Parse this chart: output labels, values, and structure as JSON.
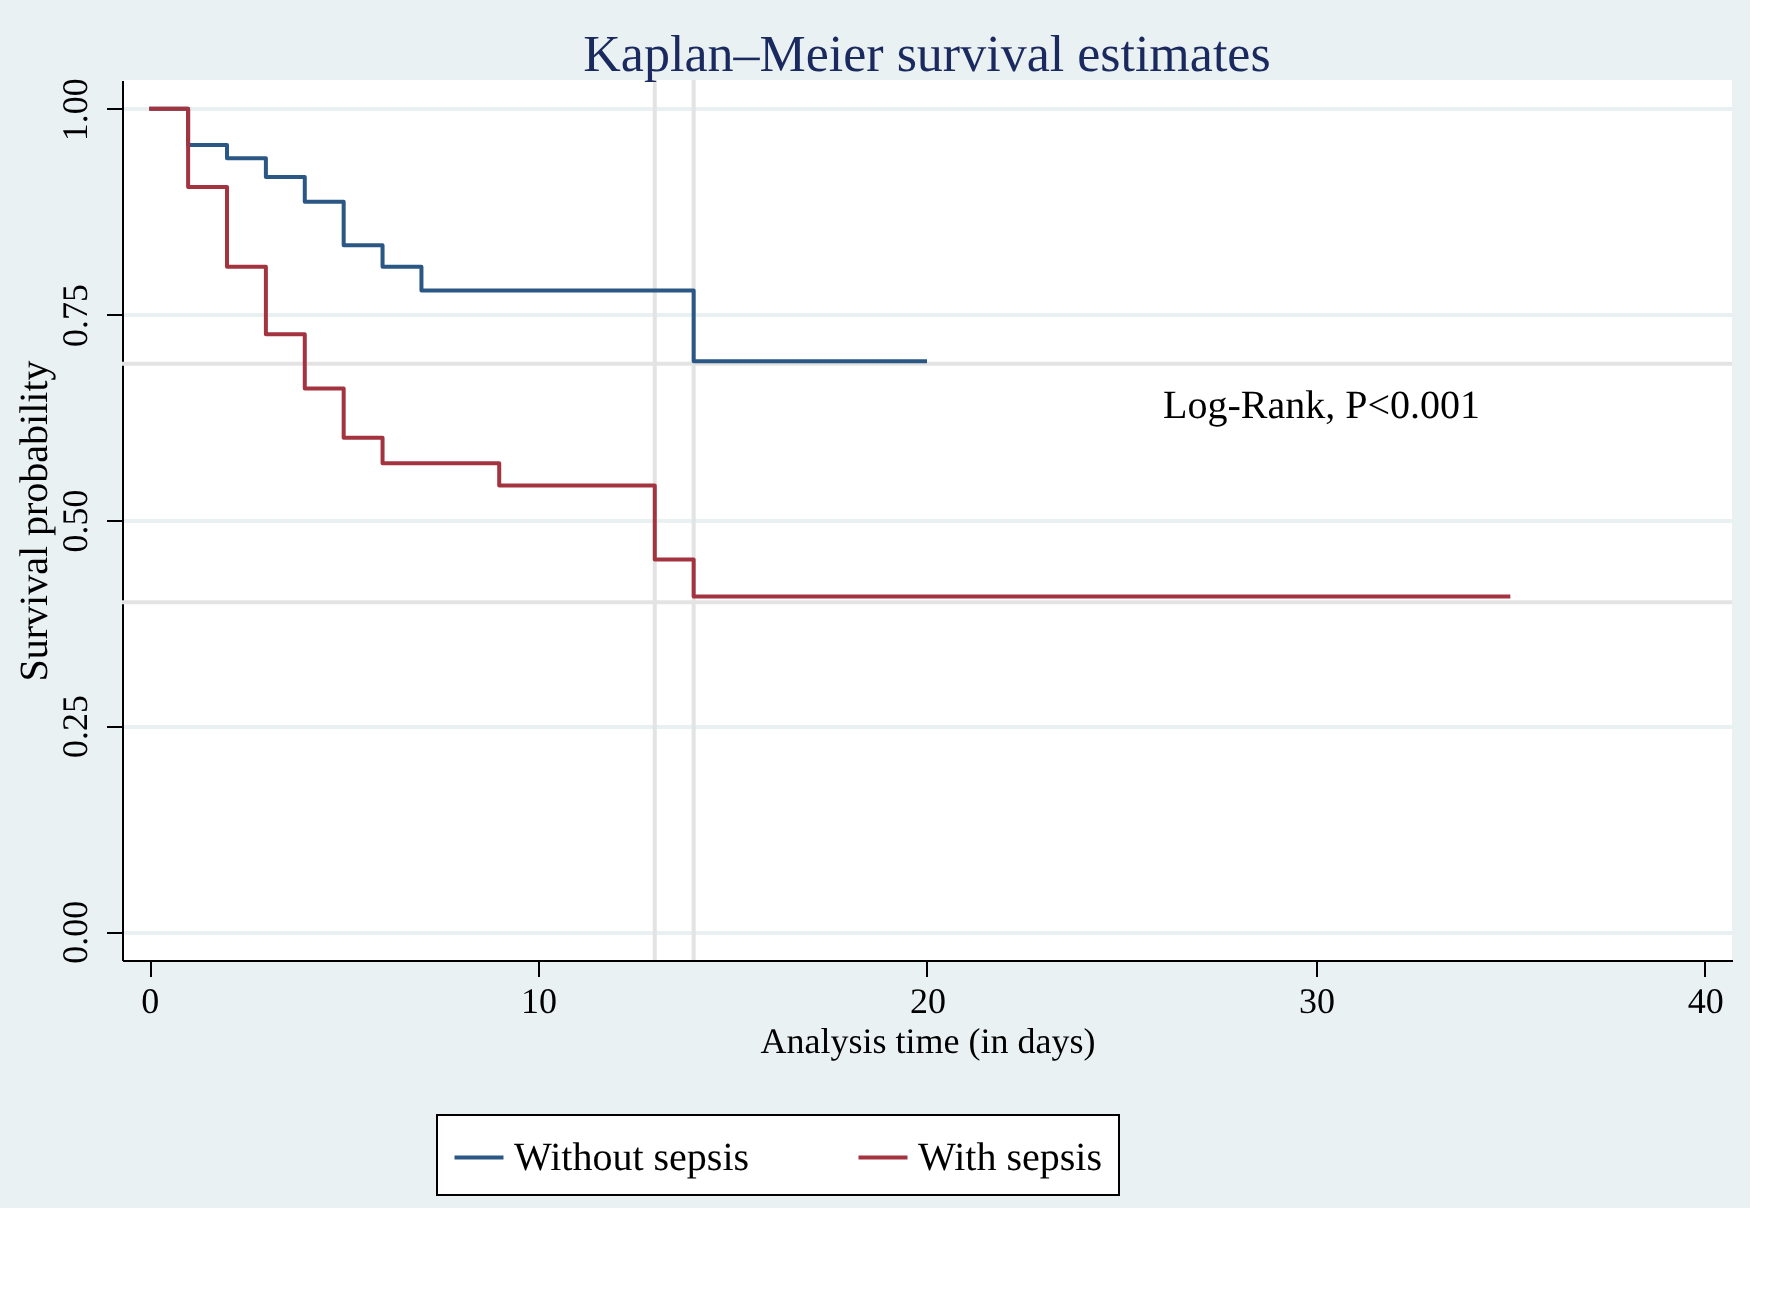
{
  "chart_data": {
    "type": "step",
    "title": "Kaplan–Meier survival estimates",
    "xlabel": "Analysis time (in days)",
    "ylabel": "Survival probability",
    "series": [
      {
        "name": "Without sepsis",
        "color": "#2a5783",
        "x": [
          0,
          1,
          2,
          3,
          4,
          5,
          6,
          7,
          14,
          20
        ],
        "values": [
          1,
          0.956,
          0.94,
          0.917,
          0.887,
          0.834,
          0.808,
          0.779,
          0.693,
          0.693
        ]
      },
      {
        "name": "With sepsis",
        "color": "#a3343f",
        "x": [
          0,
          1,
          2,
          3,
          4,
          5,
          6,
          9,
          13,
          14,
          35
        ],
        "values": [
          1,
          0.905,
          0.808,
          0.726,
          0.66,
          0.6,
          0.569,
          0.542,
          0.452,
          0.407,
          0.407
        ]
      }
    ],
    "xlim": [
      -0.7,
      40.7
    ],
    "ylim": [
      -0.035,
      1.035
    ],
    "xticks": [
      0,
      10,
      20,
      30,
      40
    ],
    "yticks": [
      {
        "value": 0,
        "label": "0.00"
      },
      {
        "value": 0.25,
        "label": "0.25"
      },
      {
        "value": 0.5,
        "label": "0.50"
      },
      {
        "value": 0.75,
        "label": "0.75"
      },
      {
        "value": 1,
        "label": "1.00"
      }
    ],
    "ref_lines": [
      {
        "axis": "x",
        "value": 13,
        "color": "#e3e3e3"
      },
      {
        "axis": "x",
        "value": 14,
        "color": "#e3e3e3"
      },
      {
        "axis": "y",
        "value": 0.69,
        "color": "#e3e3e3"
      },
      {
        "axis": "y",
        "value": 0.4,
        "color": "#e3e3e3"
      }
    ],
    "annotations": [
      "Log-Rank, P<0.001"
    ],
    "grid": "y",
    "legend": "bottom",
    "line_style": "solid",
    "marker": "none"
  }
}
